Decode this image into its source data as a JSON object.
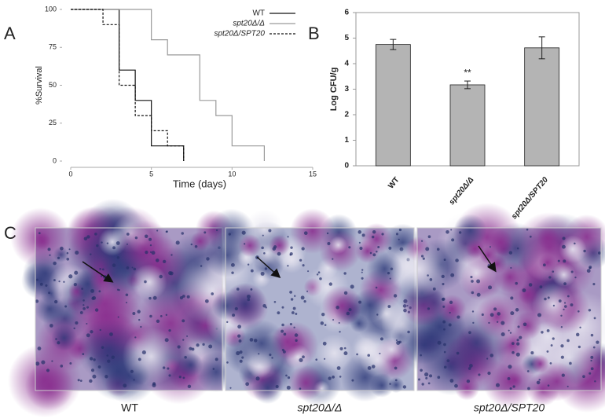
{
  "panel_labels": [
    "A",
    "B",
    "C"
  ],
  "chart_data": [
    {
      "type": "line",
      "step": true,
      "xlabel": "Time (days)",
      "ylabel": "%Survival",
      "xlim": [
        0,
        15
      ],
      "xticks": [
        0,
        5,
        10,
        15
      ],
      "ylim": [
        0,
        100
      ],
      "yticks": [
        0,
        25,
        50,
        75,
        100
      ],
      "legend": "upper right",
      "series": [
        {
          "name": "WT",
          "color": "#111111",
          "dash": false,
          "x": [
            0,
            3,
            4,
            5,
            7
          ],
          "values": [
            100,
            60,
            40,
            10,
            0
          ]
        },
        {
          "name": "spt20Δ/Δ",
          "color": "#9a9a9a",
          "dash": false,
          "x": [
            0,
            5,
            6,
            8,
            9,
            10,
            12
          ],
          "values": [
            100,
            80,
            70,
            40,
            30,
            10,
            0
          ]
        },
        {
          "name": "spt20Δ/SPT20",
          "color": "#111111",
          "dash": true,
          "x": [
            0,
            2,
            3,
            4,
            5,
            6,
            7
          ],
          "values": [
            100,
            90,
            50,
            30,
            20,
            10,
            0
          ]
        }
      ]
    },
    {
      "type": "bar",
      "ylabel": "Log CFU/g",
      "ylim": [
        0,
        6
      ],
      "yticks": [
        0,
        1,
        2,
        3,
        4,
        5,
        6
      ],
      "categories": [
        "WT",
        "spt20Δ/Δ",
        "spt20Δ/SPT20"
      ],
      "values": [
        4.75,
        3.17,
        4.62
      ],
      "errors": [
        0.2,
        0.15,
        0.43
      ],
      "color": "#b4b4b4",
      "annotations": [
        {
          "text": "**",
          "x": "spt20Δ/Δ"
        }
      ]
    }
  ],
  "images": {
    "captions": [
      "WT",
      "spt20Δ/Δ",
      "spt20Δ/SPT20"
    ]
  }
}
